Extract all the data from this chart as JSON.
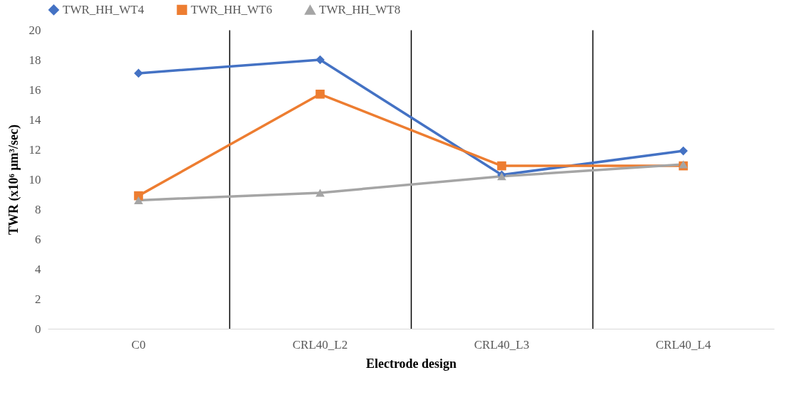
{
  "chart_data": {
    "type": "line",
    "xlabel": "Electrode design",
    "ylabel": "TWR (x10⁶ μm³/sec)",
    "categories": [
      "C0",
      "CRL40_L2",
      "CRL40_L3",
      "CRL40_L4"
    ],
    "series": [
      {
        "name": "TWR_HH_WT4",
        "color": "#4472c4",
        "marker": "diamond",
        "values": [
          17.1,
          18.0,
          10.3,
          11.9
        ]
      },
      {
        "name": "TWR_HH_WT6",
        "color": "#ed7d31",
        "marker": "square",
        "values": [
          8.9,
          15.7,
          10.9,
          10.9
        ]
      },
      {
        "name": "TWR_HH_WT8",
        "color": "#a5a5a5",
        "marker": "triangle",
        "values": [
          8.6,
          9.1,
          10.2,
          11.0
        ]
      }
    ],
    "ylim": [
      0,
      20
    ],
    "yticks": [
      0,
      2,
      4,
      6,
      8,
      10,
      12,
      14,
      16,
      18,
      20
    ],
    "grid": "x",
    "legend": "top"
  }
}
